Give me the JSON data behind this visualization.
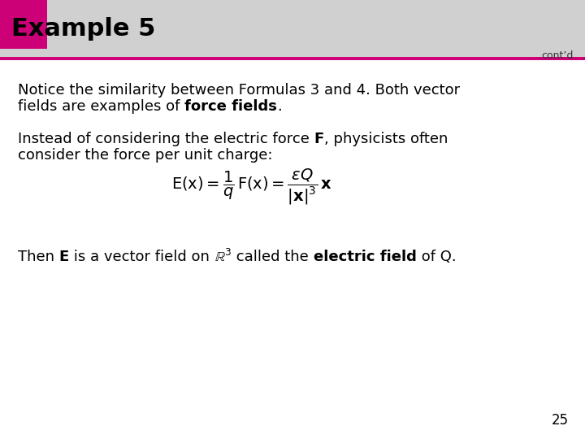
{
  "title": "Example 5",
  "contd": "cont’d",
  "header_bg_color": "#d0d0d0",
  "header_accent_color": "#cc0077",
  "header_bottom_line_color": "#cc0077",
  "title_color": "#000000",
  "title_fontsize": 22,
  "body_fontsize": 13,
  "contd_fontsize": 9,
  "page_number": "25",
  "page_fontsize": 12,
  "para1_line1": "Notice the similarity between Formulas 3 and 4. Both vector",
  "para1_line2_normal": "fields are examples of ",
  "para1_line2_bold": "force fields",
  "para1_line2_end": ".",
  "para2_line1_normal": "Instead of considering the electric force ",
  "para2_line1_bold": "F",
  "para2_line1_end": ", physicists often",
  "para2_line2": "consider the force per unit charge:",
  "para3_pre": "Then ",
  "para3_bold1": "E",
  "para3_mid": " is a vector field on ",
  "para3_end": " called the ",
  "para3_bold2": "electric field",
  "para3_end2": " of Q.",
  "bg_color": "#ffffff"
}
